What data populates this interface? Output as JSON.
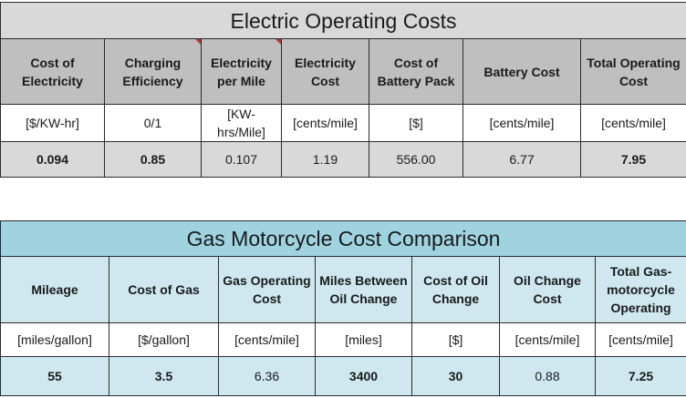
{
  "electric": {
    "title": "Electric Operating Costs",
    "headers": [
      "Cost of Electricity",
      "Charging Efficiency",
      "Electricity per Mile",
      "Electricity Cost",
      "Cost of Battery Pack",
      "Battery Cost",
      "Total Operating Cost"
    ],
    "units": [
      "[$/KW-hr]",
      "0/1",
      "[KW-hrs/Mile]",
      "[cents/mile]",
      "[$]",
      "[cents/mile]",
      "[cents/mile]"
    ],
    "values": [
      "0.094",
      "0.85",
      "0.107",
      "1.19",
      "556.00",
      "6.77",
      "7.95"
    ]
  },
  "gas": {
    "title": "Gas Motorcycle Cost Comparison",
    "headers": [
      "Mileage",
      "Cost of Gas",
      "Gas Operating Cost",
      "Miles Between Oil Change",
      "Cost of Oil Change",
      "Oil Change Cost",
      "Total Gas-motorcycle Operating Cost"
    ],
    "units": [
      "[miles/gallon]",
      "[$/gallon]",
      "[cents/mile]",
      "[miles]",
      "[$]",
      "[cents/mile]",
      "[cents/mile]"
    ],
    "values": [
      "55",
      "3.5",
      "6.36",
      "3400",
      "30",
      "0.88",
      "7.25"
    ]
  },
  "colors": {
    "input_red": "#e21b1b",
    "electric_header": "#bfbfbf",
    "electric_band": "#d9d9d9",
    "gas_title": "#9fd3e0",
    "gas_band": "#cfe8f0"
  }
}
